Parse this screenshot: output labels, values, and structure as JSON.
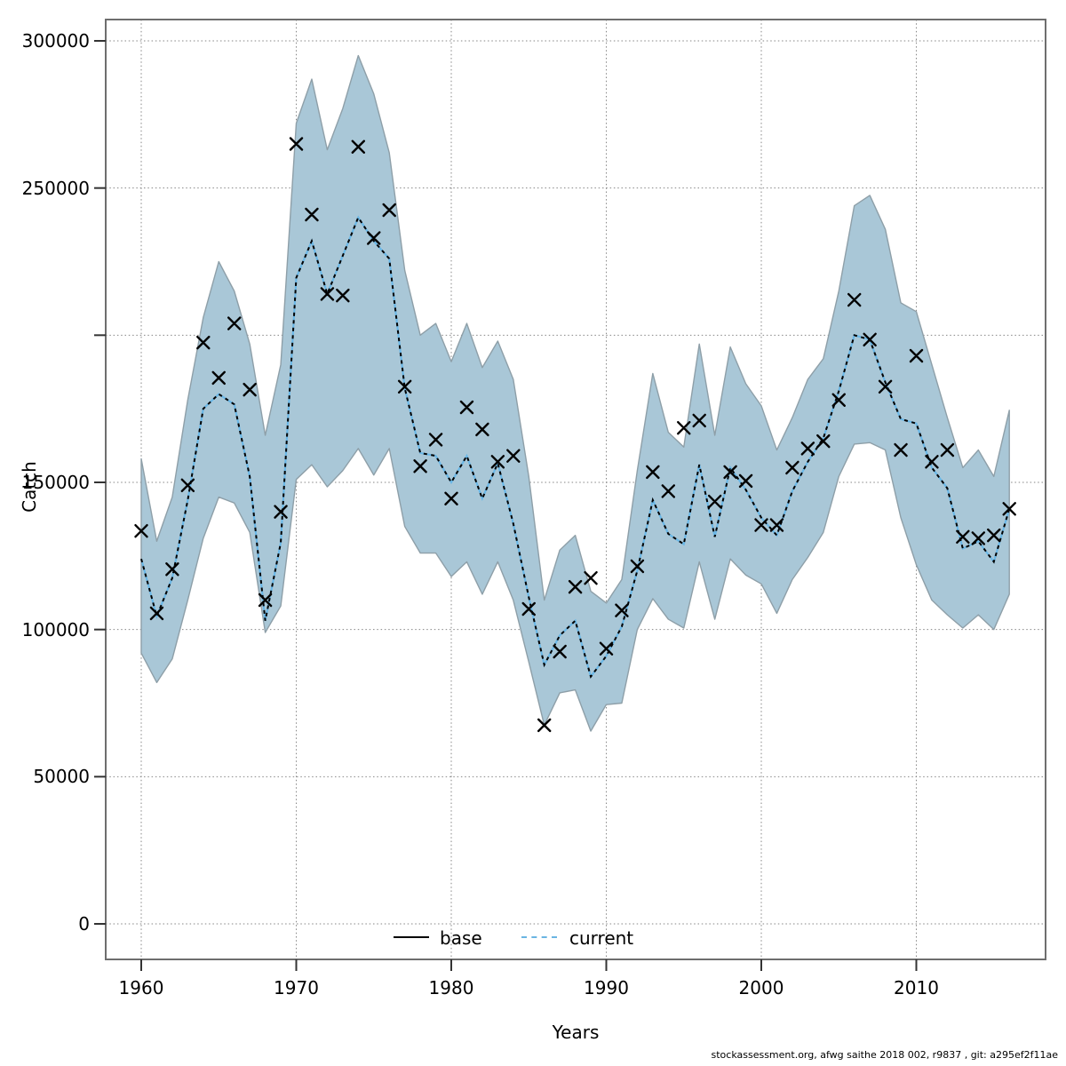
{
  "figure": {
    "y_axis": {
      "label": "Catch",
      "labeled_ticks": [
        {
          "value": 300000,
          "text": "300000"
        },
        {
          "value": 250000,
          "text": "250000"
        },
        {
          "value": 150000,
          "text": "150000"
        },
        {
          "value": 100000,
          "text": "100000"
        },
        {
          "value": 50000,
          "text": "50000"
        },
        {
          "value": 0,
          "text": "0"
        }
      ],
      "all_tick_values": [
        0,
        50000,
        100000,
        150000,
        200000,
        250000,
        300000
      ]
    },
    "x_axis": {
      "label": "Years",
      "labeled_ticks": [
        {
          "value": 1960,
          "text": "1960"
        },
        {
          "value": 1970,
          "text": "1970"
        },
        {
          "value": 1980,
          "text": "1980"
        },
        {
          "value": 1990,
          "text": "1990"
        },
        {
          "value": 2000,
          "text": "2000"
        },
        {
          "value": 2010,
          "text": "2010"
        }
      ]
    },
    "legend": {
      "base_label": "base",
      "current_label": "current"
    },
    "footer": "stockassessment.org, afwg saithe 2018 002, r9837 , git: a295ef2f11ae",
    "colors": {
      "band_fill": "#a9c7d7",
      "band_edge": "#8e9fa8",
      "current_line_blue": "#69b7e7",
      "current_line_black": "#000000",
      "marker": "#000000",
      "grid": "#808080",
      "frame": "#6e6e6e"
    }
  },
  "chart_data": {
    "type": "line",
    "title": "",
    "xlabel": "Years",
    "ylabel": "Catch",
    "grid": true,
    "legend_position": "bottom-center",
    "xlim": [
      1957.7,
      2018.3
    ],
    "ylim": [
      0,
      312000
    ],
    "x": [
      1960,
      1961,
      1962,
      1963,
      1964,
      1965,
      1966,
      1967,
      1968,
      1969,
      1970,
      1971,
      1972,
      1973,
      1974,
      1975,
      1976,
      1977,
      1978,
      1979,
      1980,
      1981,
      1982,
      1983,
      1984,
      1985,
      1986,
      1987,
      1988,
      1989,
      1990,
      1991,
      1992,
      1993,
      1994,
      1995,
      1996,
      1997,
      1998,
      1999,
      2000,
      2001,
      2002,
      2003,
      2004,
      2005,
      2006,
      2007,
      2008,
      2009,
      2010,
      2011,
      2012,
      2013,
      2014,
      2015,
      2016
    ],
    "series": [
      {
        "name": "base",
        "type": "points",
        "marker": "x",
        "values": [
          133500,
          105500,
          120500,
          149000,
          197500,
          185500,
          204000,
          181500,
          110000,
          140000,
          265000,
          241000,
          214000,
          213500,
          264000,
          233000,
          242500,
          182500,
          155500,
          164500,
          144500,
          175500,
          168000,
          157000,
          159000,
          107000,
          67500,
          92500,
          114500,
          117500,
          93500,
          106500,
          121500,
          153500,
          147000,
          168500,
          171000,
          143500,
          153500,
          150500,
          135500,
          135500,
          155000,
          161500,
          164000,
          178000,
          212000,
          198500,
          182500,
          161000,
          193000,
          157000,
          161000,
          131500,
          131000,
          132000,
          141000
        ]
      },
      {
        "name": "current",
        "type": "line",
        "style": "dashed",
        "values": [
          124000,
          104500,
          117500,
          144000,
          175000,
          180000,
          176500,
          152000,
          103000,
          129500,
          219500,
          232000,
          214000,
          227000,
          240000,
          232000,
          226000,
          182000,
          160000,
          159000,
          150000,
          159000,
          144500,
          156500,
          136000,
          111000,
          88000,
          98000,
          103000,
          84000,
          91000,
          101000,
          120000,
          144000,
          132500,
          129000,
          156000,
          131500,
          155000,
          147500,
          138000,
          132000,
          147000,
          157000,
          165000,
          181000,
          200000,
          198500,
          184000,
          171500,
          170000,
          155000,
          148000,
          127500,
          130000,
          123000,
          141000
        ]
      },
      {
        "name": "confidence_lower",
        "type": "band-edge",
        "values": [
          92000,
          82000,
          90000,
          110000,
          131000,
          145000,
          143000,
          133000,
          99000,
          108000,
          151000,
          156000,
          148500,
          154000,
          161500,
          152500,
          161500,
          135000,
          126000,
          126000,
          118000,
          123000,
          112000,
          123000,
          110000,
          89000,
          67500,
          78500,
          79500,
          65500,
          74500,
          75000,
          100000,
          110500,
          103500,
          100500,
          123000,
          103500,
          124000,
          118500,
          115500,
          105500,
          117000,
          124500,
          133000,
          152000,
          163000,
          163500,
          161000,
          138000,
          122000,
          110000,
          105000,
          100500,
          105000,
          100000,
          112000
        ]
      },
      {
        "name": "confidence_upper",
        "type": "band-edge",
        "values": [
          158000,
          130000,
          145000,
          178000,
          206000,
          225000,
          215000,
          197000,
          166000,
          190000,
          272000,
          287000,
          263000,
          277000,
          295000,
          282000,
          262000,
          222000,
          200000,
          204000,
          191000,
          204000,
          189000,
          198000,
          185000,
          152000,
          110000,
          127000,
          132000,
          113000,
          109000,
          117000,
          154000,
          187000,
          167000,
          162000,
          197000,
          166000,
          196000,
          183500,
          176000,
          161000,
          172000,
          185000,
          192000,
          215000,
          244000,
          247500,
          236000,
          211000,
          208000,
          190000,
          172000,
          155000,
          161000,
          152000,
          174500
        ]
      }
    ]
  }
}
